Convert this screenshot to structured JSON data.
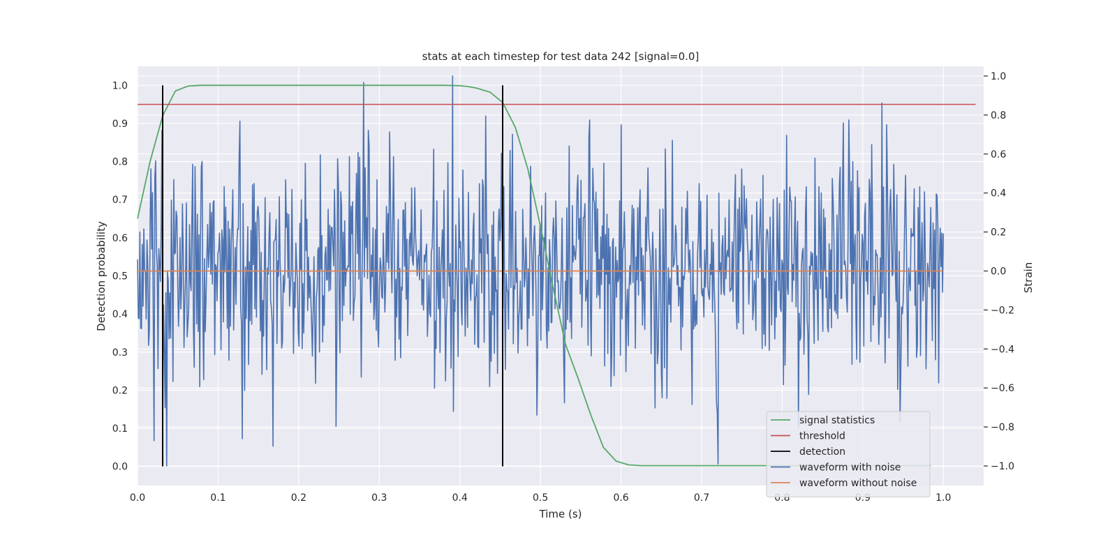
{
  "chart_data": {
    "type": "line",
    "title": "stats at each timestep for test data 242 [signal=0.0]",
    "xlabel": "Time (s)",
    "ylabel": "Detection probability",
    "y2label": "Strain",
    "xlim": [
      0.0,
      1.05
    ],
    "ylim": [
      -0.05,
      1.05
    ],
    "y2lim": [
      -1.1,
      1.05
    ],
    "x_ticks": [
      "0.0",
      "0.1",
      "0.2",
      "0.3",
      "0.4",
      "0.5",
      "0.6",
      "0.7",
      "0.8",
      "0.9",
      "1.0"
    ],
    "y_ticks": [
      "0.0",
      "0.1",
      "0.2",
      "0.3",
      "0.4",
      "0.5",
      "0.6",
      "0.7",
      "0.8",
      "0.9",
      "1.0"
    ],
    "y2_ticks": [
      "−1.0",
      "−0.8",
      "−0.6",
      "−0.4",
      "−0.2",
      "0.0",
      "0.2",
      "0.4",
      "0.6",
      "0.8",
      "1.0"
    ],
    "grid": true,
    "legend_position": "bottom-right",
    "background_color": "#eaeaf2",
    "series": [
      {
        "name": "signal statistics",
        "axis": "left",
        "color": "#55a868",
        "x": [
          0.0,
          0.0156,
          0.0312,
          0.0469,
          0.0625,
          0.0781,
          0.1,
          0.2,
          0.3,
          0.38,
          0.4,
          0.41,
          0.42,
          0.4375,
          0.4531,
          0.4688,
          0.4844,
          0.5,
          0.5156,
          0.5312,
          0.5469,
          0.5625,
          0.5781,
          0.5938,
          0.6094,
          0.625,
          0.65,
          0.7,
          0.8,
          0.9,
          0.9844
        ],
        "y": [
          0.65,
          0.8,
          0.92,
          0.985,
          0.998,
          1.0,
          1.0,
          1.0,
          1.0,
          1.0,
          0.999,
          0.997,
          0.993,
          0.982,
          0.955,
          0.89,
          0.78,
          0.63,
          0.47,
          0.32,
          0.23,
          0.135,
          0.05,
          0.014,
          0.004,
          0.002,
          0.002,
          0.002,
          0.002,
          0.002,
          0.002
        ]
      },
      {
        "name": "threshold",
        "axis": "left",
        "color": "#c44e52",
        "x": [
          0.0,
          1.04
        ],
        "y": [
          0.95,
          0.95
        ]
      },
      {
        "name": "detection",
        "axis": "left",
        "color": "#000000",
        "vlines": [
          0.0312,
          0.4531
        ],
        "ymin": 0.0,
        "ymax": 1.0
      },
      {
        "name": "waveform with noise",
        "axis": "right",
        "color": "#4c72b0",
        "x_range": [
          0.0,
          1.0
        ],
        "num_points": 1024,
        "y_approx_range": [
          -1.0,
          1.0
        ],
        "y_typical_std": 0.3,
        "notable_points": [
          {
            "x": 0.003,
            "y": 0.2
          },
          {
            "x": 0.036,
            "y": -1.0
          },
          {
            "x": 0.391,
            "y": 1.0
          },
          {
            "x": 0.392,
            "y": -0.72
          },
          {
            "x": 0.72,
            "y": -0.99
          },
          {
            "x": 0.93,
            "y": 0.75
          },
          {
            "x": 0.13,
            "y": -0.86
          },
          {
            "x": 0.6,
            "y": 0.75
          },
          {
            "x": 0.82,
            "y": -0.8
          }
        ]
      },
      {
        "name": "waveform without noise",
        "axis": "right",
        "color": "#dd8452",
        "x": [
          0.0,
          1.0
        ],
        "y": [
          0.0,
          0.0
        ]
      }
    ]
  }
}
